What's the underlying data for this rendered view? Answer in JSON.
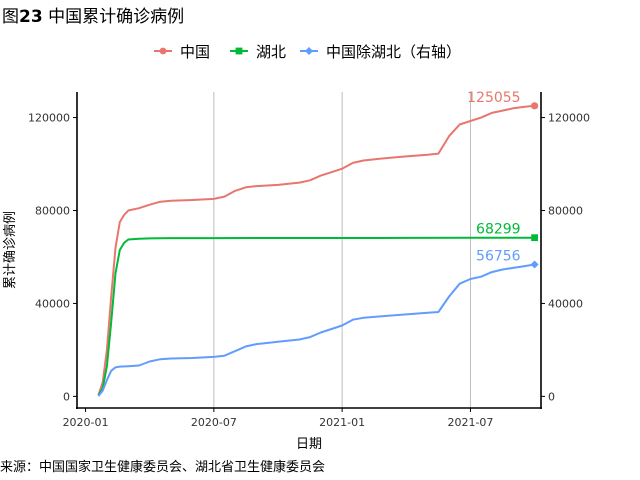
{
  "header": {
    "title_prefix": "图",
    "title_number": "23",
    "title_text": " 中国累计确诊病例"
  },
  "source_note": "来源：中国国家卫生健康委员会、湖北省卫生健康委员会",
  "colors": {
    "china": "#e8766d",
    "hubei": "#00ba38",
    "ex_hubei": "#619cff",
    "grid": "#bebebe"
  },
  "chart_data": {
    "type": "line",
    "title": "中国累计确诊病例",
    "xlabel": "日期",
    "ylabel": "累计确诊病例",
    "x_ticks": [
      "2020-01",
      "2020-07",
      "2021-01",
      "2021-07"
    ],
    "x_tick_months": [
      0,
      6,
      12,
      18
    ],
    "xlim_months": [
      -0.4,
      21.3
    ],
    "y_ticks": [
      0,
      40000,
      80000,
      120000
    ],
    "y_tick_labels": [
      "0",
      "40000",
      "80000",
      "120000"
    ],
    "ylim": [
      -5000,
      131000
    ],
    "y2_ticks": [
      0,
      40000,
      80000,
      120000
    ],
    "y2_tick_labels": [
      "0",
      "40000",
      "80000",
      "120000"
    ],
    "grid": "vertical-major",
    "legend_position": "top",
    "series": [
      {
        "name": "中国",
        "key": "china",
        "marker": "circle",
        "end_label": "125055",
        "points": [
          [
            0.6,
            550
          ],
          [
            0.8,
            6000
          ],
          [
            1.0,
            20000
          ],
          [
            1.2,
            43000
          ],
          [
            1.4,
            64000
          ],
          [
            1.6,
            75000
          ],
          [
            1.8,
            78000
          ],
          [
            2.0,
            80000
          ],
          [
            2.5,
            81000
          ],
          [
            3.0,
            82500
          ],
          [
            3.5,
            83800
          ],
          [
            4.0,
            84200
          ],
          [
            5.0,
            84500
          ],
          [
            6.0,
            85000
          ],
          [
            6.5,
            86000
          ],
          [
            7.0,
            88500
          ],
          [
            7.5,
            90000
          ],
          [
            8.0,
            90500
          ],
          [
            9.0,
            91000
          ],
          [
            10.0,
            92000
          ],
          [
            10.5,
            93000
          ],
          [
            11.0,
            95000
          ],
          [
            11.5,
            96500
          ],
          [
            12.0,
            98000
          ],
          [
            12.5,
            100500
          ],
          [
            13.0,
            101500
          ],
          [
            14.0,
            102500
          ],
          [
            15.0,
            103300
          ],
          [
            16.0,
            104000
          ],
          [
            16.5,
            104500
          ],
          [
            17.0,
            112000
          ],
          [
            17.5,
            117000
          ],
          [
            18.0,
            118500
          ],
          [
            18.5,
            120000
          ],
          [
            19.0,
            122000
          ],
          [
            19.5,
            123000
          ],
          [
            20.0,
            124000
          ],
          [
            20.5,
            124600
          ],
          [
            21.0,
            125055
          ]
        ]
      },
      {
        "name": "湖北",
        "key": "hubei",
        "marker": "square",
        "end_label": "68299",
        "points": [
          [
            0.6,
            450
          ],
          [
            0.8,
            3500
          ],
          [
            1.0,
            13000
          ],
          [
            1.2,
            32000
          ],
          [
            1.4,
            53000
          ],
          [
            1.6,
            63000
          ],
          [
            1.8,
            66000
          ],
          [
            2.0,
            67500
          ],
          [
            2.5,
            67800
          ],
          [
            3.0,
            68000
          ],
          [
            3.5,
            68100
          ],
          [
            4.0,
            68128
          ],
          [
            6.0,
            68135
          ],
          [
            9.0,
            68150
          ],
          [
            12.0,
            68160
          ],
          [
            15.0,
            68200
          ],
          [
            18.0,
            68260
          ],
          [
            21.0,
            68299
          ]
        ]
      },
      {
        "name": "中国除湖北（右轴）",
        "key": "ex_hubei",
        "marker": "diamond",
        "end_label": "56756",
        "points": [
          [
            0.6,
            100
          ],
          [
            0.8,
            2500
          ],
          [
            1.0,
            7000
          ],
          [
            1.2,
            11000
          ],
          [
            1.4,
            12500
          ],
          [
            1.6,
            12800
          ],
          [
            2.0,
            13000
          ],
          [
            2.5,
            13300
          ],
          [
            3.0,
            15000
          ],
          [
            3.5,
            16000
          ],
          [
            4.0,
            16300
          ],
          [
            5.0,
            16500
          ],
          [
            6.0,
            17000
          ],
          [
            6.5,
            17500
          ],
          [
            7.0,
            19500
          ],
          [
            7.5,
            21500
          ],
          [
            8.0,
            22500
          ],
          [
            9.0,
            23500
          ],
          [
            10.0,
            24500
          ],
          [
            10.5,
            25500
          ],
          [
            11.0,
            27500
          ],
          [
            11.5,
            29000
          ],
          [
            12.0,
            30500
          ],
          [
            12.5,
            33000
          ],
          [
            13.0,
            33800
          ],
          [
            14.0,
            34600
          ],
          [
            15.0,
            35300
          ],
          [
            16.0,
            36000
          ],
          [
            16.5,
            36300
          ],
          [
            17.0,
            43000
          ],
          [
            17.5,
            48500
          ],
          [
            18.0,
            50500
          ],
          [
            18.5,
            51500
          ],
          [
            19.0,
            53500
          ],
          [
            19.5,
            54600
          ],
          [
            20.0,
            55300
          ],
          [
            20.5,
            56000
          ],
          [
            21.0,
            56756
          ]
        ]
      }
    ]
  }
}
